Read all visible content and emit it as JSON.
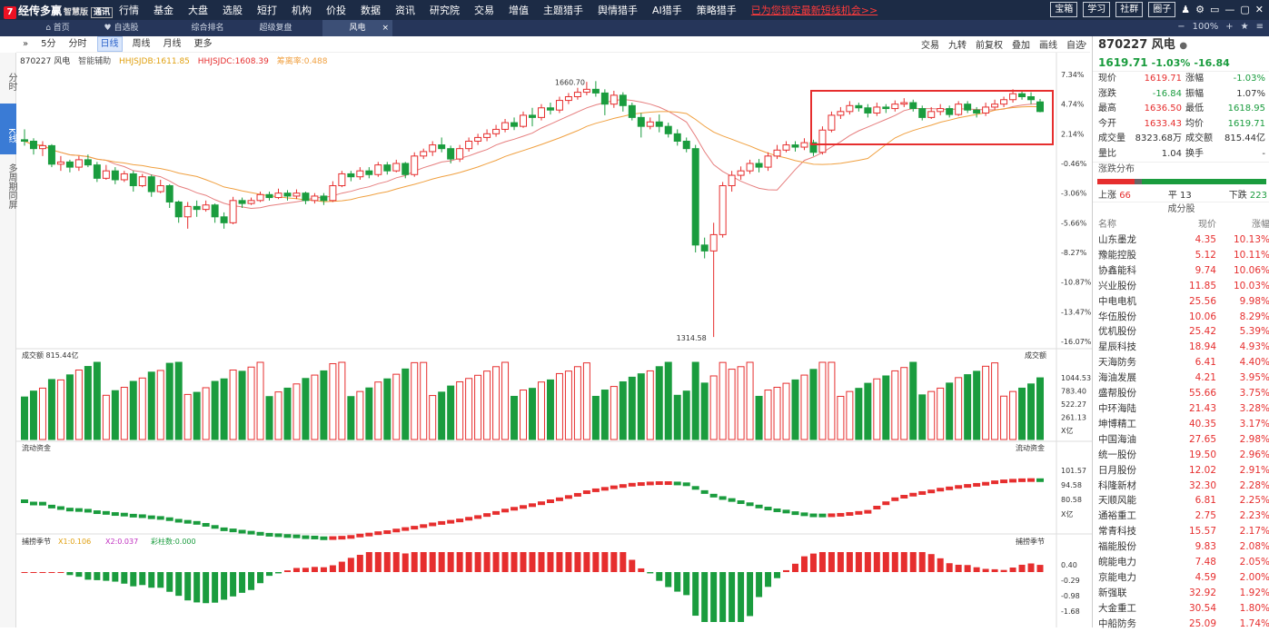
{
  "app": {
    "logo": "经传多赢",
    "edition": "智慧版",
    "mode_badge": "通讯"
  },
  "top_nav": [
    "行情",
    "基金",
    "大盘",
    "选股",
    "短打",
    "机构",
    "价投",
    "数据",
    "资讯",
    "研究院",
    "交易",
    "增值",
    "主题猎手",
    "舆情猎手",
    "AI猎手",
    "策略猎手"
  ],
  "promo": "已为您锁定最新短线机会>>",
  "top_right": [
    "宝箱",
    "学习",
    "社群",
    "圈子"
  ],
  "tabs": [
    {
      "label": "首页",
      "icon": "home-icon"
    },
    {
      "label": "自选股",
      "icon": "heart-icon"
    },
    {
      "label": "综合排名"
    },
    {
      "label": "超级复盘"
    },
    {
      "label": "风电",
      "active": true
    }
  ],
  "tabs_right": {
    "zoom": "100%"
  },
  "toolbar": {
    "periods": [
      "5分",
      "分时",
      "日线",
      "周线",
      "月线",
      "更多"
    ],
    "active_period": "日线",
    "right": [
      "交易",
      "九转",
      "前复权",
      "叠加",
      "画线",
      "自选"
    ]
  },
  "left_strip": [
    "分时",
    "K线",
    "多周期同屏"
  ],
  "chart_info": {
    "code_name": "870227 风电",
    "assist": "智能辅助",
    "ind1": "HHJSJDB:1611.85",
    "ind2": "HHJSJDC:1608.39",
    "ind3": "筹离率:0.488"
  },
  "y_axis_main": [
    "7.34%",
    "4.74%",
    "2.14%",
    "-0.46%",
    "-3.06%",
    "-5.66%",
    "-8.27%",
    "-10.87%",
    "-13.47%",
    "-16.07%"
  ],
  "price_marks": {
    "high": "1660.70",
    "low": "1314.58"
  },
  "volume_panel": {
    "label": "成交额",
    "value": "815.44亿",
    "right_label": "成交额",
    "ticks": [
      "1044.53",
      "783.40",
      "522.27",
      "261.13",
      "X亿"
    ]
  },
  "flow_panel": {
    "label": "流动资金",
    "right_label": "流动资金",
    "ticks": [
      "101.57",
      "94.58",
      "80.58",
      "X亿"
    ]
  },
  "season_panel": {
    "label": "捕捞季节",
    "x1": "X1:0.106",
    "x2": "X2:0.037",
    "bars": "彩柱数:0.000",
    "right_label": "捕捞季节",
    "ticks": [
      "0.40",
      "-0.29",
      "-0.98",
      "-1.68"
    ]
  },
  "quote": {
    "code": "870227 风电",
    "price": "1619.71",
    "change_pct": "-1.03%",
    "change": "-16.84",
    "rows": [
      [
        "现价",
        "1619.71",
        "涨幅",
        "-1.03%"
      ],
      [
        "涨跌",
        "-16.84",
        "振幅",
        "1.07%"
      ],
      [
        "最高",
        "1636.50",
        "最低",
        "1618.95"
      ],
      [
        "今开",
        "1633.43",
        "均价",
        "1619.71"
      ],
      [
        "成交量",
        "8323.68万",
        "成交额",
        "815.44亿"
      ],
      [
        "量比",
        "1.04",
        "换手",
        "-"
      ]
    ]
  },
  "updown": {
    "title": "涨跌分布",
    "up_label": "上涨",
    "up": "66",
    "flat_label": "平",
    "flat": "13",
    "down_label": "下跌",
    "down": "223",
    "up_ratio": 0.219,
    "flat_ratio": 0.043
  },
  "components": {
    "title": "成分股",
    "headers": [
      "名称",
      "现价",
      "涨幅"
    ],
    "rows": [
      [
        "山东墨龙",
        "4.35",
        "10.13%"
      ],
      [
        "豫能控股",
        "5.12",
        "10.11%"
      ],
      [
        "协鑫能科",
        "9.74",
        "10.06%"
      ],
      [
        "兴业股份",
        "11.85",
        "10.03%"
      ],
      [
        "中电电机",
        "25.56",
        "9.98%"
      ],
      [
        "华伍股份",
        "10.06",
        "8.29%"
      ],
      [
        "优机股份",
        "25.42",
        "5.39%"
      ],
      [
        "星辰科技",
        "18.94",
        "4.93%"
      ],
      [
        "天海防务",
        "6.41",
        "4.40%"
      ],
      [
        "海油发展",
        "4.21",
        "3.95%"
      ],
      [
        "盛帮股份",
        "55.66",
        "3.75%"
      ],
      [
        "中环海陆",
        "21.43",
        "3.28%"
      ],
      [
        "坤博精工",
        "40.35",
        "3.17%"
      ],
      [
        "中国海油",
        "27.65",
        "2.98%"
      ],
      [
        "统一股份",
        "19.50",
        "2.96%"
      ],
      [
        "日月股份",
        "12.02",
        "2.91%"
      ],
      [
        "科隆新材",
        "32.30",
        "2.28%"
      ],
      [
        "天顺风能",
        "6.81",
        "2.25%"
      ],
      [
        "通裕重工",
        "2.75",
        "2.23%"
      ],
      [
        "常青科技",
        "15.57",
        "2.17%"
      ],
      [
        "福能股份",
        "9.83",
        "2.08%"
      ],
      [
        "皖能电力",
        "7.48",
        "2.05%"
      ],
      [
        "京能电力",
        "4.59",
        "2.00%"
      ],
      [
        "新强联",
        "32.92",
        "1.92%"
      ],
      [
        "大金重工",
        "30.54",
        "1.80%"
      ],
      [
        "中船防务",
        "25.09",
        "1.74%"
      ]
    ]
  },
  "colors": {
    "up": "#e62e2e",
    "down": "#1a9c3e",
    "bg_top": "#1c2b45",
    "ma1": "#e67e7e",
    "ma2": "#f0a040",
    "highlight": "#e62e2e"
  },
  "chart_data": {
    "type": "candlestick",
    "candles": [
      [
        1582,
        1580,
        1596,
        1574
      ],
      [
        1580,
        1570,
        1584,
        1562
      ],
      [
        1570,
        1574,
        1580,
        1560
      ],
      [
        1574,
        1549,
        1576,
        1545
      ],
      [
        1549,
        1552,
        1560,
        1540
      ],
      [
        1552,
        1545,
        1555,
        1538
      ],
      [
        1545,
        1555,
        1560,
        1540
      ],
      [
        1555,
        1548,
        1562,
        1545
      ],
      [
        1548,
        1530,
        1552,
        1525
      ],
      [
        1530,
        1540,
        1548,
        1528
      ],
      [
        1540,
        1528,
        1545,
        1522
      ],
      [
        1528,
        1536,
        1540,
        1525
      ],
      [
        1536,
        1520,
        1540,
        1512
      ],
      [
        1520,
        1532,
        1536,
        1518
      ],
      [
        1532,
        1512,
        1535,
        1505
      ],
      [
        1512,
        1520,
        1528,
        1510
      ],
      [
        1520,
        1498,
        1522,
        1490
      ],
      [
        1498,
        1478,
        1500,
        1470
      ],
      [
        1478,
        1492,
        1498,
        1462
      ],
      [
        1492,
        1488,
        1500,
        1478
      ],
      [
        1488,
        1494,
        1500,
        1485
      ],
      [
        1494,
        1478,
        1496,
        1470
      ],
      [
        1478,
        1470,
        1484,
        1462
      ],
      [
        1470,
        1500,
        1505,
        1468
      ],
      [
        1500,
        1496,
        1504,
        1490
      ],
      [
        1496,
        1500,
        1504,
        1494
      ],
      [
        1500,
        1508,
        1512,
        1498
      ],
      [
        1508,
        1504,
        1512,
        1500
      ],
      [
        1504,
        1510,
        1516,
        1502
      ],
      [
        1510,
        1506,
        1514,
        1500
      ],
      [
        1506,
        1510,
        1515,
        1502
      ],
      [
        1510,
        1500,
        1512,
        1495
      ],
      [
        1500,
        1506,
        1510,
        1496
      ],
      [
        1506,
        1500,
        1510,
        1494
      ],
      [
        1500,
        1520,
        1526,
        1498
      ],
      [
        1520,
        1536,
        1540,
        1518
      ],
      [
        1536,
        1532,
        1540,
        1526
      ],
      [
        1532,
        1540,
        1545,
        1528
      ],
      [
        1540,
        1535,
        1545,
        1530
      ],
      [
        1535,
        1548,
        1552,
        1532
      ],
      [
        1548,
        1540,
        1552,
        1535
      ],
      [
        1540,
        1550,
        1555,
        1538
      ],
      [
        1550,
        1535,
        1552,
        1530
      ],
      [
        1535,
        1560,
        1565,
        1532
      ],
      [
        1560,
        1566,
        1570,
        1556
      ],
      [
        1566,
        1575,
        1580,
        1560
      ],
      [
        1575,
        1570,
        1585,
        1565
      ],
      [
        1570,
        1556,
        1574,
        1550
      ],
      [
        1556,
        1570,
        1575,
        1552
      ],
      [
        1570,
        1580,
        1585,
        1566
      ],
      [
        1580,
        1585,
        1590,
        1575
      ],
      [
        1585,
        1590,
        1596,
        1580
      ],
      [
        1590,
        1596,
        1602,
        1586
      ],
      [
        1596,
        1605,
        1610,
        1592
      ],
      [
        1605,
        1600,
        1612,
        1595
      ],
      [
        1600,
        1615,
        1620,
        1598
      ],
      [
        1615,
        1612,
        1625,
        1600
      ],
      [
        1612,
        1625,
        1630,
        1608
      ],
      [
        1625,
        1622,
        1632,
        1616
      ],
      [
        1622,
        1635,
        1640,
        1618
      ],
      [
        1635,
        1640,
        1645,
        1630
      ],
      [
        1640,
        1646,
        1652,
        1636
      ],
      [
        1646,
        1650,
        1660,
        1642
      ],
      [
        1650,
        1645,
        1661,
        1640
      ],
      [
        1645,
        1630,
        1650,
        1615
      ],
      [
        1630,
        1642,
        1648,
        1625
      ],
      [
        1642,
        1628,
        1646,
        1620
      ],
      [
        1628,
        1612,
        1632,
        1608
      ],
      [
        1612,
        1600,
        1618,
        1585
      ],
      [
        1600,
        1606,
        1612,
        1596
      ],
      [
        1606,
        1600,
        1616,
        1592
      ],
      [
        1600,
        1590,
        1605,
        1585
      ],
      [
        1590,
        1580,
        1596,
        1574
      ],
      [
        1580,
        1570,
        1585,
        1565
      ],
      [
        1570,
        1440,
        1575,
        1430
      ],
      [
        1440,
        1432,
        1450,
        1422
      ],
      [
        1432,
        1454,
        1470,
        1316
      ],
      [
        1454,
        1520,
        1525,
        1450
      ],
      [
        1520,
        1534,
        1540,
        1512
      ],
      [
        1534,
        1540,
        1546,
        1528
      ],
      [
        1540,
        1550,
        1555,
        1536
      ],
      [
        1550,
        1545,
        1556,
        1538
      ],
      [
        1545,
        1560,
        1565,
        1540
      ],
      [
        1560,
        1568,
        1575,
        1556
      ],
      [
        1568,
        1575,
        1580,
        1565
      ],
      [
        1575,
        1572,
        1580,
        1566
      ],
      [
        1572,
        1578,
        1584,
        1568
      ],
      [
        1578,
        1565,
        1582,
        1560
      ],
      [
        1565,
        1595,
        1600,
        1562
      ],
      [
        1595,
        1615,
        1620,
        1592
      ],
      [
        1615,
        1620,
        1626,
        1610
      ],
      [
        1620,
        1628,
        1634,
        1616
      ],
      [
        1628,
        1625,
        1632,
        1620
      ],
      [
        1625,
        1618,
        1630,
        1612
      ],
      [
        1618,
        1626,
        1632,
        1614
      ],
      [
        1626,
        1624,
        1630,
        1618
      ],
      [
        1624,
        1630,
        1635,
        1620
      ],
      [
        1630,
        1632,
        1638,
        1626
      ],
      [
        1632,
        1624,
        1636,
        1620
      ],
      [
        1624,
        1612,
        1628,
        1608
      ],
      [
        1612,
        1620,
        1626,
        1610
      ],
      [
        1620,
        1624,
        1630,
        1615
      ],
      [
        1624,
        1616,
        1628,
        1612
      ],
      [
        1616,
        1630,
        1634,
        1614
      ],
      [
        1630,
        1622,
        1634,
        1618
      ],
      [
        1622,
        1618,
        1626,
        1612
      ],
      [
        1618,
        1626,
        1632,
        1614
      ],
      [
        1626,
        1630,
        1636,
        1622
      ],
      [
        1630,
        1636,
        1640,
        1626
      ],
      [
        1636,
        1644,
        1650,
        1632
      ],
      [
        1644,
        1640,
        1648,
        1636
      ],
      [
        1640,
        1636,
        1646,
        1630
      ],
      [
        1633,
        1620,
        1637,
        1619
      ]
    ]
  }
}
